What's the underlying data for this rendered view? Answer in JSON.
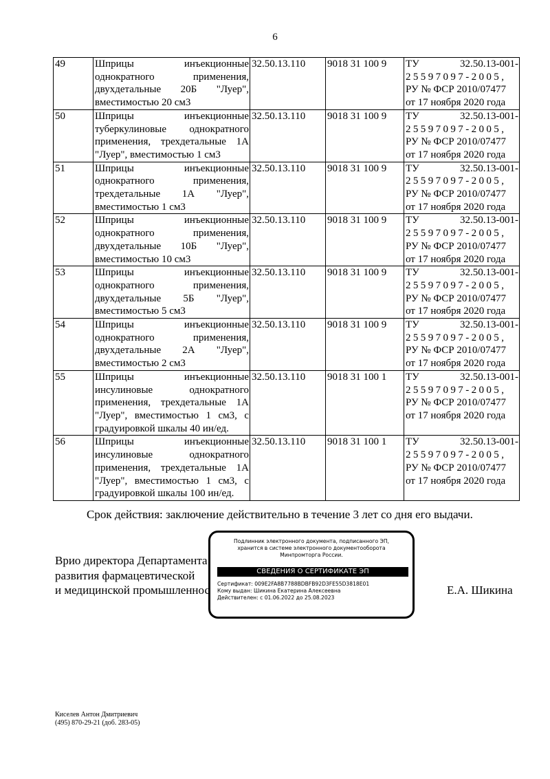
{
  "page_number": "6",
  "rows": [
    {
      "n": "49",
      "desc": "Шприцы инъекционные однократного применения, двухдетальные 20Б \"Луер\", вместимостью 20 см3",
      "okpd": "32.50.13.110",
      "tnved": "9018 31 100 9"
    },
    {
      "n": "50",
      "desc": "Шприцы инъекционные туберкулиновые однократного применения, трехдетальные 1А \"Луер\", вместимостью 1 см3",
      "okpd": "32.50.13.110",
      "tnved": "9018 31 100 9"
    },
    {
      "n": "51",
      "desc": "Шприцы инъекционные однократного применения, трехдетальные 1А \"Луер\", вместимостью 1 см3",
      "okpd": "32.50.13.110",
      "tnved": "9018 31 100 9"
    },
    {
      "n": "52",
      "desc": "Шприцы инъекционные однократного применения, двухдетальные 10Б \"Луер\", вместимостью 10 см3",
      "okpd": "32.50.13.110",
      "tnved": "9018 31 100 9"
    },
    {
      "n": "53",
      "desc": "Шприцы инъекционные однократного применения, двухдетальные 5Б \"Луер\", вместимостью 5 см3",
      "okpd": "32.50.13.110",
      "tnved": "9018 31 100 9"
    },
    {
      "n": "54",
      "desc": "Шприцы инъекционные однократного применения, двухдетальные 2А \"Луер\", вместимостью 2 см3",
      "okpd": "32.50.13.110",
      "tnved": "9018 31 100 9"
    },
    {
      "n": "55",
      "desc": "Шприцы инъекционные инсулиновые однократного применения, трехдетальные 1А \"Луер\", вместимостью 1 см3, с градуировкой шкалы 40 ин/ед.",
      "okpd": "32.50.13.110",
      "tnved": "9018 31 100 1"
    },
    {
      "n": "56",
      "desc": "Шприцы инъекционные инсулиновые однократного применения, трехдетальные 1А \"Луер\", вместимостью 1 см3, с градуировкой шкалы 100 ин/ед.",
      "okpd": "32.50.13.110",
      "tnved": "9018 31 100 1"
    }
  ],
  "reg": {
    "tu": "ТУ",
    "code1": "32.50.13-001-",
    "code2": "25597097-2005,",
    "ru": "РУ № ФСР 2010/07477",
    "date": "от 17 ноября 2020 года"
  },
  "validity": "Срок действия: заключение действительно в течение 3 лет со дня его выдачи.",
  "signatory": {
    "line1": "Врио директора Департамента",
    "line2": "развития фармацевтической",
    "line3": "и медицинской промышленности",
    "name": "Е.А. Шикина"
  },
  "stamp": {
    "line1": "Подлинник электронного документа, подписанного ЭП,",
    "line2": "хранится в системе электронного документооборота",
    "line3": "Минпромторга России.",
    "header": "СВЕДЕНИЯ О СЕРТИФИКАТЕ ЭП",
    "cert": "Сертификат: 009E2FA8B7788BDBFB92D3FE55D3818E01",
    "owner": "Кому выдан: Шикина Екатерина Алексеевна",
    "valid": "Действителен: с 01.06.2022 до 25.08.2023"
  },
  "contact": {
    "name": "Киселев Антон Дмитриевич",
    "phone": "(495) 870-29-21 (доб. 283-05)"
  }
}
